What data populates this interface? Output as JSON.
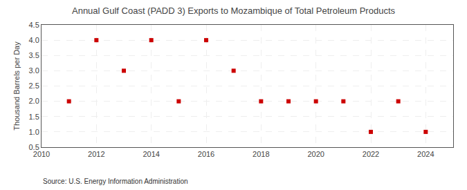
{
  "chart_data": {
    "type": "scatter",
    "title": "Annual Gulf Coast (PADD 3) Exports to Mozambique of Total Petroleum Products",
    "ylabel": "Thousand Barrels per Day",
    "source": "Source: U.S. Energy Information Administration",
    "x": [
      2011,
      2012,
      2013,
      2014,
      2015,
      2016,
      2017,
      2018,
      2019,
      2020,
      2021,
      2022,
      2023,
      2024
    ],
    "values": [
      2.0,
      4.0,
      3.0,
      4.0,
      2.0,
      4.0,
      3.0,
      2.0,
      2.0,
      2.0,
      2.0,
      1.0,
      2.0,
      1.0
    ],
    "color": "#cc0000",
    "marker": "square",
    "xlim": [
      2010,
      2025
    ],
    "xticks": [
      2010,
      2012,
      2014,
      2016,
      2018,
      2020,
      2022,
      2024
    ],
    "ylim": [
      0.5,
      4.5
    ],
    "yticks": [
      0.5,
      {
        "value": 1.0,
        "label": "1.0"
      },
      1.5,
      {
        "value": 2.0,
        "label": "2.0"
      },
      2.5,
      {
        "value": 3.0,
        "label": "3.0"
      },
      3.5,
      {
        "value": 4.0,
        "label": "4.0"
      },
      4.5
    ],
    "grid": true
  }
}
